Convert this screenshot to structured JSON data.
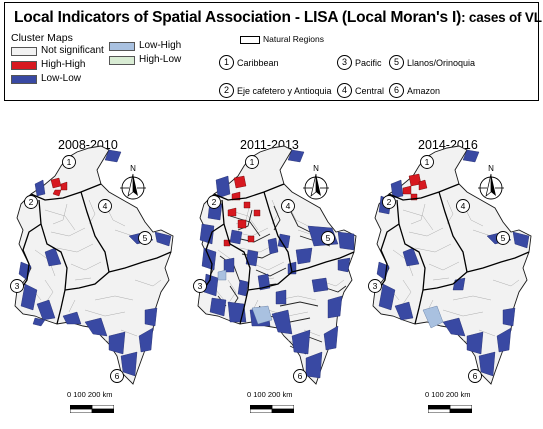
{
  "legend": {
    "title_main": "Local Indicators of Spatial Association - LISA (Local Moran's I)",
    "title_suffix": ": cases of VL",
    "cluster_heading": "Cluster Maps",
    "categories": [
      {
        "label": "Not significant",
        "color": "#f2f2f2"
      },
      {
        "label": "High-High",
        "color": "#d71920"
      },
      {
        "label": "Low-Low",
        "color": "#3949a3"
      },
      {
        "label": "Low-High",
        "color": "#a9c1e0"
      },
      {
        "label": "High-Low",
        "color": "#d9ecd4"
      }
    ],
    "natural_regions_label": "Natural Regions",
    "regions": [
      {
        "num": "1",
        "name": "Caribbean"
      },
      {
        "num": "2",
        "name": "Eje cafetero y Antioquia"
      },
      {
        "num": "3",
        "name": "Pacific"
      },
      {
        "num": "4",
        "name": "Central"
      },
      {
        "num": "5",
        "name": "Llanos/Orinoquia"
      },
      {
        "num": "6",
        "name": "Amazon"
      }
    ]
  },
  "maps": [
    {
      "period": "2008-2010",
      "north": "N",
      "scale": "0 100 200 km"
    },
    {
      "period": "2011-2013",
      "north": "N",
      "scale": "0 100 200 km"
    },
    {
      "period": "2014-2016",
      "north": "N",
      "scale": "0 100 200 km"
    }
  ],
  "colors": {
    "not_significant": "#f2f2f2",
    "high_high": "#d71920",
    "low_low": "#3949a3",
    "low_high": "#a9c1e0",
    "outline": "#1a1a1a"
  }
}
